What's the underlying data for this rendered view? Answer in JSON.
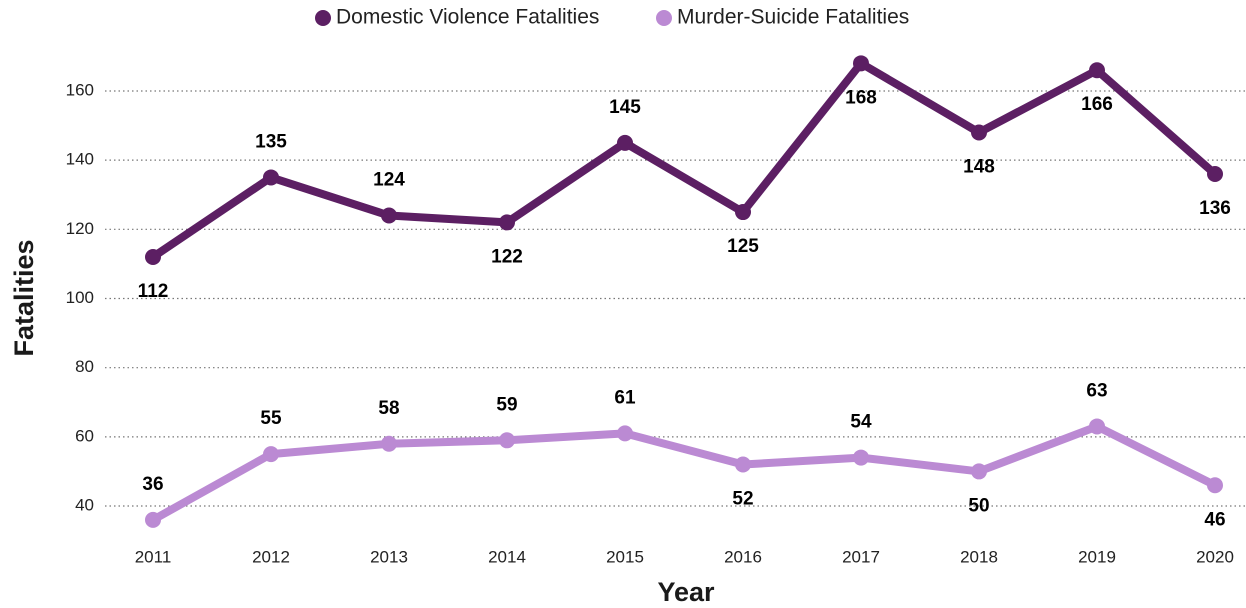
{
  "chart_data": {
    "type": "line",
    "categories": [
      "2011",
      "2012",
      "2013",
      "2014",
      "2015",
      "2016",
      "2017",
      "2018",
      "2019",
      "2020"
    ],
    "series": [
      {
        "name": "Domestic Violence Fatalities",
        "color": "#5c1f63",
        "values": [
          112,
          135,
          124,
          122,
          145,
          125,
          168,
          148,
          166,
          136
        ]
      },
      {
        "name": "Murder-Suicide Fatalities",
        "color": "#bb8ad3",
        "values": [
          36,
          55,
          58,
          59,
          61,
          52,
          54,
          50,
          63,
          46
        ]
      }
    ],
    "x_label": "Year",
    "y_label": "Fatalities",
    "ylim": [
      30,
      170
    ],
    "yticks": [
      40,
      60,
      80,
      100,
      120,
      140,
      160
    ],
    "grid": true,
    "legend": "top"
  }
}
